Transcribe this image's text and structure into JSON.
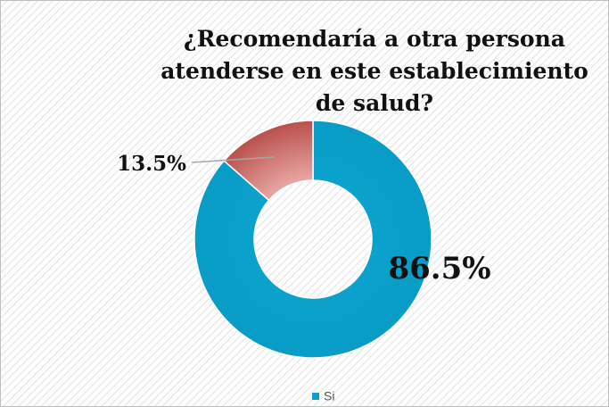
{
  "chart_data": {
    "type": "donut",
    "title": "¿Recomendaría a otra persona atenderse en este establecimiento de salud?",
    "categories": [
      "Si",
      null
    ],
    "values": [
      86.5,
      13.5
    ],
    "value_labels": [
      "86.5%",
      "13.5%"
    ],
    "colors": [
      "#0aa2cc",
      "#c25b58"
    ],
    "legend": "bottom"
  }
}
